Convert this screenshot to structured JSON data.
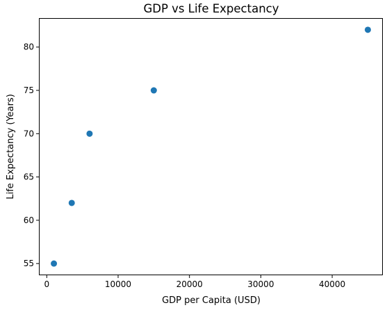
{
  "chart_data": {
    "type": "scatter",
    "title": "GDP vs Life Expectancy",
    "xlabel": "GDP per Capita (USD)",
    "ylabel": "Life Expectancy (Years)",
    "xlim": [
      -1100,
      47100
    ],
    "ylim": [
      53.65,
      83.35
    ],
    "xticks": [
      0,
      10000,
      20000,
      30000,
      40000
    ],
    "xtick_labels": [
      "0",
      "10000",
      "20000",
      "30000",
      "40000"
    ],
    "yticks": [
      55,
      60,
      65,
      70,
      75,
      80
    ],
    "ytick_labels": [
      "55",
      "60",
      "65",
      "70",
      "75",
      "80"
    ],
    "grid": false,
    "marker_color": "#1f77b4",
    "points": [
      {
        "x": 1000,
        "y": 55
      },
      {
        "x": 3500,
        "y": 62
      },
      {
        "x": 6000,
        "y": 70
      },
      {
        "x": 15000,
        "y": 75
      },
      {
        "x": 45000,
        "y": 82
      }
    ]
  }
}
